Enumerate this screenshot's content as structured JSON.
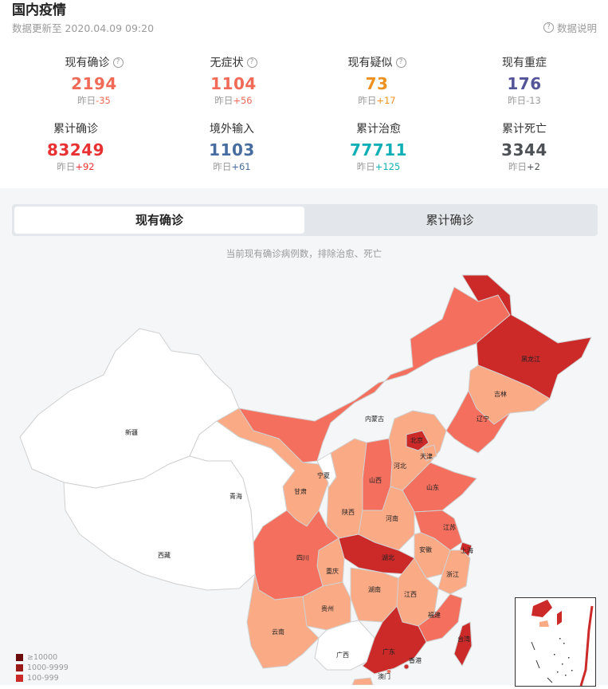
{
  "header": {
    "title": "国内疫情",
    "update_time": "数据更新至 2020.04.09 09:20",
    "explain_label": "数据说明"
  },
  "stats": [
    {
      "label": "现有确诊",
      "value": "2194",
      "delta_prefix": "昨日",
      "delta": "-35",
      "color": "#f06a57",
      "delta_color": "#f06a57",
      "info": true
    },
    {
      "label": "无症状",
      "value": "1104",
      "delta_prefix": "昨日",
      "delta": "+56",
      "color": "#f06a57",
      "delta_color": "#f06a57",
      "info": true
    },
    {
      "label": "现有疑似",
      "value": "73",
      "delta_prefix": "昨日",
      "delta": "+17",
      "color": "#ec9120",
      "delta_color": "#ec9120",
      "info": true
    },
    {
      "label": "现有重症",
      "value": "176",
      "delta_prefix": "昨日",
      "delta": "-13",
      "color": "#545499",
      "delta_color": "#9a9a9a",
      "info": false
    },
    {
      "label": "累计确诊",
      "value": "83249",
      "delta_prefix": "昨日",
      "delta": "+92",
      "color": "#e83132",
      "delta_color": "#e83132",
      "info": false
    },
    {
      "label": "境外输入",
      "value": "1103",
      "delta_prefix": "昨日",
      "delta": "+61",
      "color": "#476da0",
      "delta_color": "#476da0",
      "info": false
    },
    {
      "label": "累计治愈",
      "value": "77711",
      "delta_prefix": "昨日",
      "delta": "+125",
      "color": "#10aeb5",
      "delta_color": "#10aeb5",
      "info": false
    },
    {
      "label": "累计死亡",
      "value": "3344",
      "delta_prefix": "昨日",
      "delta": "+2",
      "color": "#4d5054",
      "delta_color": "#4d5054",
      "info": false
    }
  ],
  "tabs": {
    "current": "现有确诊",
    "cumulative": "累计确诊"
  },
  "map_note": "当前现有确诊病例数，排除治愈、死亡",
  "provinces": {
    "heilongjiang": "黑龙江",
    "jilin": "吉林",
    "liaoning": "辽宁",
    "neimenggu": "内蒙古",
    "beijing": "北京",
    "tianjin": "天津",
    "hebei": "河北",
    "shanxi": "山西",
    "shandong": "山东",
    "xinjiang": "新疆",
    "ningxia": "宁夏",
    "gansu": "甘肃",
    "qinghai": "青海",
    "shaanxi": "陕西",
    "henan": "河南",
    "jiangsu": "江苏",
    "shanghai": "上海",
    "anhui": "安徽",
    "hubei": "湖北",
    "sichuan": "四川",
    "chongqing": "重庆",
    "zhejiang": "浙江",
    "xizang": "西藏",
    "hunan": "湖南",
    "jiangxi": "江西",
    "guizhou": "贵州",
    "yunnan": "云南",
    "fujian": "福建",
    "taiwan": "台湾",
    "guangxi": "广西",
    "guangdong": "广东",
    "xianggang": "香港",
    "aomen": "澳门"
  },
  "legend": [
    {
      "label": "≥10000",
      "color": "#6b0b0b"
    },
    {
      "label": "1000-9999",
      "color": "#9b1a1a"
    },
    {
      "label": "100-999",
      "color": "#cc2929"
    }
  ],
  "colors": {
    "level_high": "#cc2929",
    "level_mid": "#f46f5e",
    "level_low": "#fbaa86",
    "level_none": "#ffffff"
  }
}
